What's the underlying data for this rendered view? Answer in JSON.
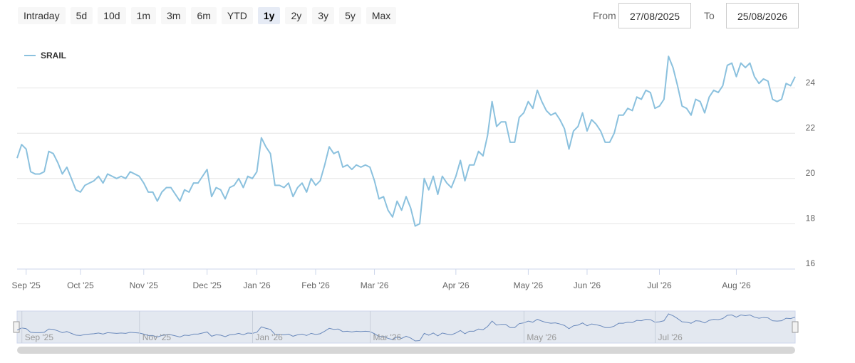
{
  "range_selector": {
    "buttons": [
      "Intraday",
      "5d",
      "10d",
      "1m",
      "3m",
      "6m",
      "YTD",
      "1y",
      "2y",
      "3y",
      "5y",
      "Max"
    ],
    "selected": 7
  },
  "date_range": {
    "from_label": "From",
    "from": "27/08/2025",
    "to_label": "To",
    "to": "25/08/2026"
  },
  "chart_data": {
    "type": "line",
    "categories": [
      null,
      null,
      "Sep '25",
      null,
      null,
      null,
      null,
      null,
      null,
      null,
      null,
      null,
      null,
      null,
      "Oct '25",
      null,
      null,
      null,
      null,
      null,
      null,
      null,
      null,
      null,
      null,
      null,
      null,
      null,
      "Nov '25",
      null,
      null,
      null,
      null,
      null,
      null,
      null,
      null,
      null,
      null,
      null,
      null,
      null,
      "Dec '25",
      null,
      null,
      null,
      null,
      null,
      null,
      null,
      null,
      null,
      null,
      "Jan '26",
      null,
      null,
      null,
      null,
      null,
      null,
      null,
      null,
      null,
      null,
      null,
      null,
      "Feb '26",
      null,
      null,
      null,
      null,
      null,
      null,
      null,
      null,
      null,
      null,
      null,
      null,
      "Mar '26",
      null,
      null,
      null,
      null,
      null,
      null,
      null,
      null,
      null,
      null,
      null,
      null,
      null,
      null,
      null,
      null,
      null,
      "Apr '26",
      null,
      null,
      null,
      null,
      null,
      null,
      null,
      null,
      null,
      null,
      null,
      null,
      null,
      null,
      null,
      "May '26",
      null,
      null,
      null,
      null,
      null,
      null,
      null,
      null,
      null,
      null,
      null,
      null,
      "Jun '26",
      null,
      null,
      null,
      null,
      null,
      null,
      null,
      null,
      null,
      null,
      null,
      null,
      null,
      null,
      null,
      "Jul '26",
      null,
      null,
      null,
      null,
      null,
      null,
      null,
      null,
      null,
      null,
      null,
      null,
      null,
      null,
      null,
      null,
      "Aug '26",
      null,
      null,
      null,
      null,
      null,
      null,
      null,
      null,
      null,
      null,
      null,
      null,
      null
    ],
    "series": [
      {
        "name": "SRAIL",
        "color": "#8bc1de",
        "values": [
          20.9,
          21.5,
          21.3,
          20.3,
          20.2,
          20.2,
          20.3,
          21.2,
          21.1,
          20.7,
          20.2,
          20.5,
          20.0,
          19.5,
          19.4,
          19.7,
          19.8,
          19.9,
          20.1,
          19.8,
          20.2,
          20.1,
          20.0,
          20.1,
          20.0,
          20.3,
          20.2,
          20.1,
          19.8,
          19.4,
          19.4,
          19.0,
          19.4,
          19.6,
          19.6,
          19.3,
          19.0,
          19.5,
          19.4,
          19.8,
          19.8,
          20.1,
          20.4,
          19.2,
          19.6,
          19.5,
          19.1,
          19.6,
          19.7,
          20.0,
          19.6,
          20.1,
          20.0,
          20.3,
          21.8,
          21.4,
          21.1,
          19.7,
          19.7,
          19.6,
          19.8,
          19.2,
          19.6,
          19.8,
          19.4,
          20.0,
          19.7,
          19.9,
          20.6,
          21.4,
          21.1,
          21.2,
          20.5,
          20.6,
          20.4,
          20.6,
          20.5,
          20.6,
          20.5,
          19.9,
          19.1,
          19.2,
          18.6,
          18.3,
          19.0,
          18.6,
          19.2,
          18.7,
          17.9,
          18.0,
          20.0,
          19.5,
          20.1,
          19.3,
          20.1,
          19.8,
          19.6,
          20.1,
          20.8,
          19.9,
          20.6,
          20.6,
          21.2,
          21.0,
          21.9,
          23.4,
          22.3,
          22.5,
          22.5,
          21.6,
          21.6,
          22.7,
          22.9,
          23.4,
          23.1,
          23.9,
          23.4,
          23.0,
          22.8,
          22.9,
          22.6,
          22.2,
          21.3,
          22.1,
          22.3,
          22.9,
          22.1,
          22.6,
          22.4,
          22.1,
          21.6,
          21.6,
          22.0,
          22.8,
          22.8,
          23.1,
          23.0,
          23.6,
          23.5,
          23.9,
          23.8,
          23.1,
          23.2,
          23.5,
          25.4,
          24.9,
          24.1,
          23.2,
          23.1,
          22.8,
          23.5,
          23.4,
          22.9,
          23.6,
          23.9,
          23.8,
          24.1,
          25.0,
          25.1,
          24.5,
          25.1,
          24.9,
          25.1,
          24.5,
          24.2,
          24.4,
          24.3,
          23.5,
          23.4,
          23.5,
          24.2,
          24.1,
          24.5
        ]
      }
    ],
    "ylim": [
      16,
      26
    ],
    "yticks": [
      16,
      18,
      20,
      22,
      24
    ],
    "grid": true,
    "legend": "top-left",
    "navigator_labels": [
      2,
      28,
      53,
      79,
      113,
      142
    ]
  }
}
